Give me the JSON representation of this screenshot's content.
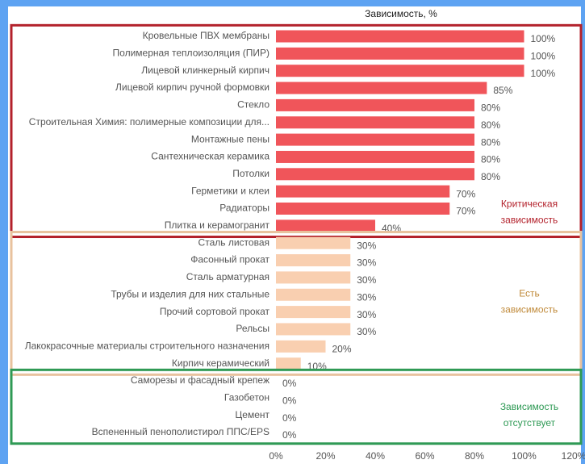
{
  "chart_data": {
    "type": "bar",
    "orientation": "horizontal",
    "title": "Зависимость, %",
    "xlim": [
      0,
      120
    ],
    "xticks": [
      {
        "value": 0,
        "label": "0%"
      },
      {
        "value": 20,
        "label": "20%"
      },
      {
        "value": 40,
        "label": "40%"
      },
      {
        "value": 60,
        "label": "60%"
      },
      {
        "value": 80,
        "label": "80%"
      },
      {
        "value": 100,
        "label": "100%"
      },
      {
        "value": 120,
        "label": "120%"
      }
    ],
    "groups": [
      {
        "label": [
          "Критическая",
          "зависимость"
        ],
        "color": "#f0555a",
        "frame": "#b3212b",
        "categories": [
          "Кровельные ПВХ мембраны",
          "Полимерная теплоизоляция (ПИР)",
          "Лицевой клинкерный кирпич",
          "Лицевой кирпич ручной формовки",
          "Стекло",
          "Строительная Химия: полимерные композиции для...",
          "Монтажные пены",
          "Сантехническая керамика",
          "Потолки",
          "Герметики и клеи",
          "Радиаторы",
          "Плитка и керамогранит"
        ],
        "values": [
          100,
          100,
          100,
          85,
          80,
          80,
          80,
          80,
          80,
          70,
          70,
          40
        ],
        "value_labels": [
          "100%",
          "100%",
          "100%",
          "85%",
          "80%",
          "80%",
          "80%",
          "80%",
          "80%",
          "70%",
          "70%",
          "40%"
        ]
      },
      {
        "label": [
          "Есть",
          "зависимость"
        ],
        "color": "#f9cfb0",
        "frame": "#e8c29e",
        "label_color": "#c08a3a",
        "categories": [
          "Сталь листовая",
          "Фасонный прокат",
          "Сталь арматурная",
          "Трубы и изделия для них стальные",
          "Прочий сортовой прокат",
          "Рельсы",
          "Лакокрасочные материалы строительного назначения",
          "Кирпич керамический"
        ],
        "values": [
          30,
          30,
          30,
          30,
          30,
          30,
          20,
          10
        ],
        "value_labels": [
          "30%",
          "30%",
          "30%",
          "30%",
          "30%",
          "30%",
          "20%",
          "10%"
        ]
      },
      {
        "label": [
          "Зависимость",
          "отсутствует"
        ],
        "color": "#f9cfb0",
        "frame": "#2f9a55",
        "categories": [
          "Саморезы и фасадный крепеж",
          "Газобетон",
          "Цемент",
          "Вспененный пенополистирол ППС/EPS"
        ],
        "values": [
          0,
          0,
          0,
          0
        ],
        "value_labels": [
          "0%",
          "0%",
          "0%",
          "0%"
        ]
      }
    ]
  }
}
